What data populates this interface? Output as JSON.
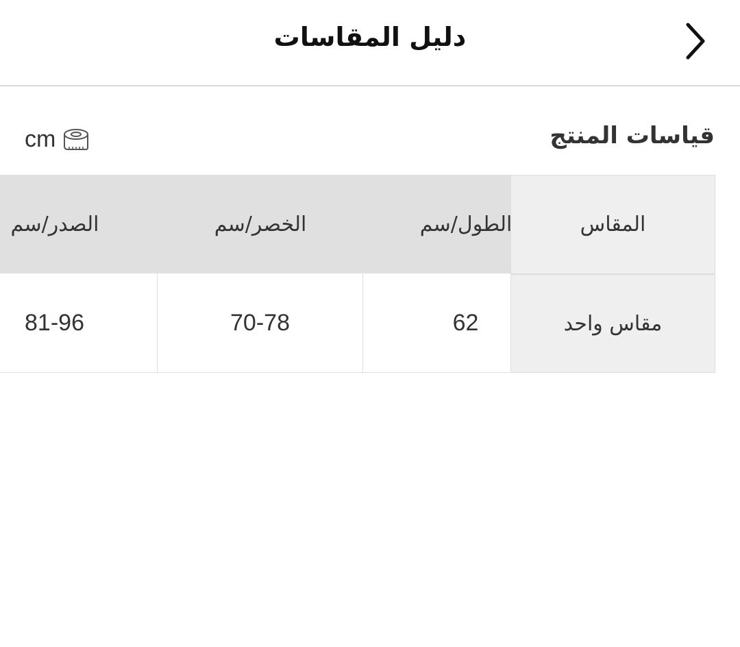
{
  "header": {
    "title": "دليل المقاسات",
    "back_icon": "chevron-right-icon"
  },
  "section": {
    "title": "قياسات المنتج",
    "unit": "cm",
    "unit_icon": "measuring-tape-icon"
  },
  "table": {
    "headers": [
      "المقاس",
      "الطول/سم",
      "الخصر/سم",
      "الصدر/سم"
    ],
    "rows": [
      [
        "مقاس واحد",
        "62",
        "70-78",
        "81-96"
      ]
    ]
  },
  "colors": {
    "header_bg": "#e0e0e0",
    "sticky_bg": "#efefef",
    "border": "#dddddd"
  }
}
